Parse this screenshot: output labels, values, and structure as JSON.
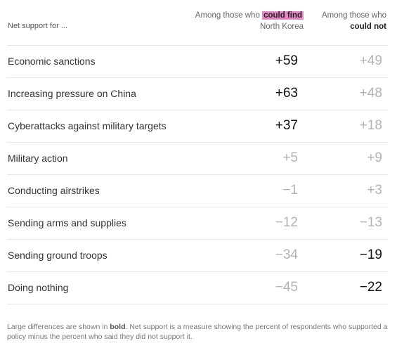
{
  "chart_data": {
    "type": "table",
    "row_header": "Net support for ...",
    "columns": [
      {
        "pre": "Among those who ",
        "highlight": "could find",
        "post": "North Korea"
      },
      {
        "pre": "Among those who",
        "emphasis": "could not"
      }
    ],
    "highlight_color": "#e687c6",
    "rows": [
      {
        "label": "Economic sanctions",
        "values": [
          "+59",
          "+49"
        ],
        "bold": [
          true,
          false
        ]
      },
      {
        "label": "Increasing pressure on China",
        "values": [
          "+63",
          "+48"
        ],
        "bold": [
          true,
          false
        ]
      },
      {
        "label": "Cyberattacks against military targets",
        "values": [
          "+37",
          "+18"
        ],
        "bold": [
          true,
          false
        ]
      },
      {
        "label": "Military action",
        "values": [
          "+5",
          "+9"
        ],
        "bold": [
          false,
          false
        ]
      },
      {
        "label": "Conducting airstrikes",
        "values": [
          "−1",
          "+3"
        ],
        "bold": [
          false,
          false
        ]
      },
      {
        "label": "Sending arms and supplies",
        "values": [
          "−12",
          "−13"
        ],
        "bold": [
          false,
          false
        ]
      },
      {
        "label": "Sending ground troops",
        "values": [
          "−34",
          "−19"
        ],
        "bold": [
          false,
          true
        ]
      },
      {
        "label": "Doing nothing",
        "values": [
          "−45",
          "−22"
        ],
        "bold": [
          false,
          true
        ]
      }
    ]
  },
  "footnote": {
    "pre": "Large differences are shown in ",
    "bold": "bold",
    "post": ". Net support is a measure showing the percent of respondents who supported a policy minus the percent who said they did not support it."
  }
}
